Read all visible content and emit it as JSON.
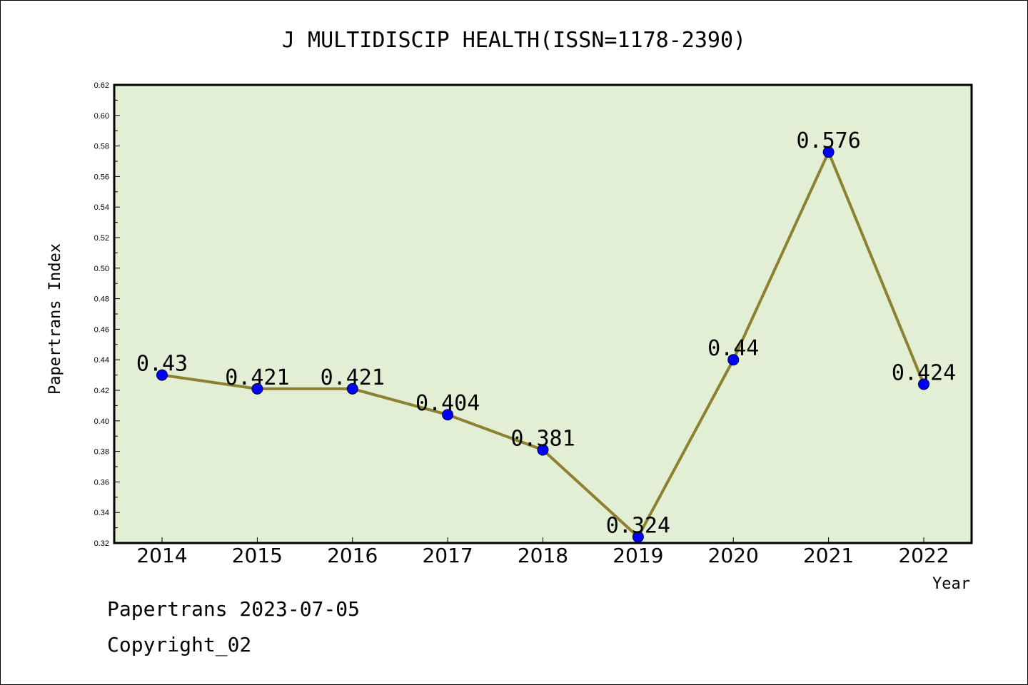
{
  "chart_data": {
    "type": "line",
    "title": "J MULTIDISCIP HEALTH(ISSN=1178-2390)",
    "xlabel": "Year",
    "ylabel": "Papertrans Index",
    "categories": [
      "2014",
      "2015",
      "2016",
      "2017",
      "2018",
      "2019",
      "2020",
      "2021",
      "2022"
    ],
    "series": [
      {
        "values": [
          0.43,
          0.421,
          0.421,
          0.404,
          0.381,
          0.324,
          0.44,
          0.576,
          0.424
        ],
        "labels": [
          "0.43",
          "0.421",
          "0.421",
          "0.404",
          "0.381",
          "0.324",
          "0.44",
          "0.576",
          "0.424"
        ]
      }
    ],
    "ylim": [
      0.32,
      0.62
    ],
    "yticks": [
      "0.32",
      "0.34",
      "0.36",
      "0.38",
      "0.40",
      "0.42",
      "0.44",
      "0.46",
      "0.48",
      "0.50",
      "0.52",
      "0.54",
      "0.56",
      "0.58",
      "0.60",
      "0.62"
    ],
    "grid": false,
    "colors": {
      "plot_background": "#e2efd4",
      "line": "#8c8031",
      "marker": "#0000ff"
    }
  },
  "footer": {
    "line1": "Papertrans 2023-07-05",
    "line2": "Copyright_02"
  }
}
